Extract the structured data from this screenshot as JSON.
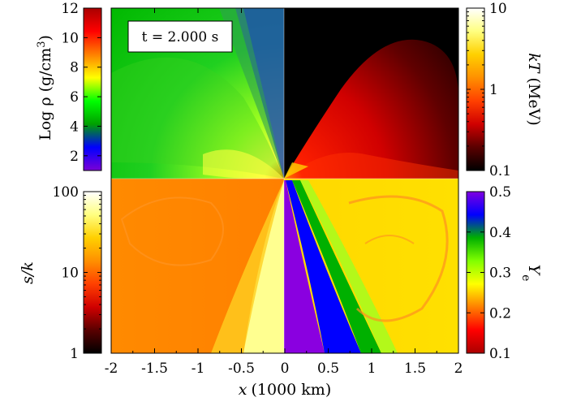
{
  "time_label": "t = 2.000 s",
  "colors": {
    "frame": "#000000",
    "background": "#ffffff"
  },
  "chart_data": {
    "type": "heatmap",
    "xlabel_var": "x",
    "xlabel_unit": "(1000 km)",
    "xticks": [
      "-2",
      "-1.5",
      "-1",
      "-0.5",
      "0",
      "0.5",
      "1",
      "1.5",
      "2"
    ],
    "xlim": [
      -2,
      2
    ],
    "quadrants": [
      {
        "name": "density",
        "position": "top-left"
      },
      {
        "name": "temperature",
        "position": "top-right"
      },
      {
        "name": "entropy",
        "position": "bottom-left"
      },
      {
        "name": "electron-fraction",
        "position": "bottom-right"
      }
    ],
    "colorbars": {
      "density": {
        "label_prefix": "Log ",
        "label_symbol": "ρ",
        "label_unit": " (g/cm",
        "label_unit_exp": "3",
        "label_unit_close": ")",
        "scale": "linear",
        "range": [
          1,
          12
        ],
        "ticks": [
          "2",
          "4",
          "6",
          "8",
          "10",
          "12"
        ],
        "stops": [
          "#7b00d6",
          "#0000ff",
          "#00a000",
          "#00ff00",
          "#ffff00",
          "#ff8000",
          "#ff0000",
          "#aa0000"
        ]
      },
      "temperature": {
        "label_italic": "kT",
        "label_unit": " (MeV)",
        "scale": "log",
        "range": [
          0.1,
          10
        ],
        "ticks": [
          "0.1",
          "1",
          "10"
        ],
        "stops": [
          "#000000",
          "#5a0000",
          "#d00000",
          "#ff4000",
          "#ff9000",
          "#ffd000",
          "#ffff80",
          "#ffffff"
        ]
      },
      "entropy": {
        "label_italic": "s/k",
        "scale": "log",
        "range": [
          1,
          100
        ],
        "ticks": [
          "1",
          "10",
          "100"
        ],
        "stops": [
          "#000000",
          "#5a0000",
          "#d00000",
          "#ff4000",
          "#ff9000",
          "#ffd000",
          "#ffff80",
          "#ffffff"
        ]
      },
      "electron-fraction": {
        "label_italic": "Y",
        "label_sub": "e",
        "scale": "linear",
        "range": [
          0.1,
          0.5
        ],
        "ticks": [
          "0.1",
          "0.2",
          "0.3",
          "0.4",
          "0.5"
        ],
        "stops": [
          "#aa0000",
          "#ff0000",
          "#ff8000",
          "#ffff00",
          "#80ff00",
          "#00b000",
          "#0000ff",
          "#8000e0"
        ]
      }
    }
  }
}
